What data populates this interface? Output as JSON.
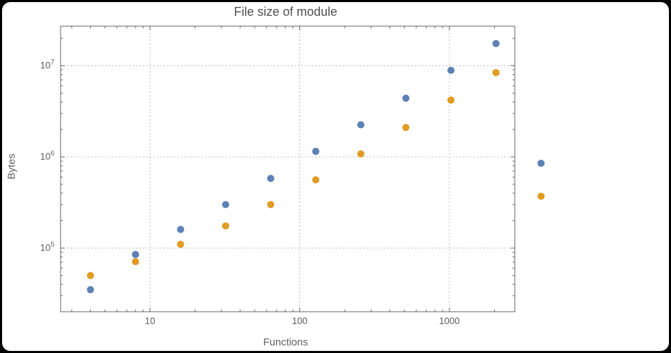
{
  "style": {
    "page_background": "#000000",
    "figure_background": "#ffffff",
    "title_color": "#4f4f4f",
    "label_color": "#5e5e5e",
    "tick_label_color": "#5f5a5a",
    "frame_color": "#626262",
    "grid_color": "#ababab"
  },
  "chart_data": {
    "type": "scatter",
    "title": "File size of module",
    "xlabel": "Functions",
    "ylabel": "Bytes",
    "x_scale": "log",
    "y_scale": "log",
    "grid": "dotted",
    "legend": "none",
    "x_range": [
      2.5,
      2700
    ],
    "y_range": [
      20000,
      27000000
    ],
    "x": [
      4,
      8,
      16,
      32,
      64,
      128,
      256,
      512,
      1024,
      2048,
      4096
    ],
    "series": [
      {
        "name": "blue",
        "color": "#5e81b5",
        "values": [
          35000,
          85000,
          160000,
          300000,
          580000,
          1150000,
          2250000,
          4400000,
          8900000,
          17500000,
          850000
        ]
      },
      {
        "name": "orange",
        "color": "#e09c24",
        "values": [
          50000,
          71000,
          110000,
          175000,
          300000,
          560000,
          1080000,
          2100000,
          4200000,
          8400000,
          370000
        ]
      }
    ],
    "x_ticks": [
      10,
      100,
      1000
    ],
    "x_tick_labels": [
      "10",
      "100",
      "1000"
    ],
    "y_ticks": [
      100000,
      1000000,
      10000000
    ],
    "y_tick_labels": [
      "10^5",
      "10^6",
      "10^7"
    ]
  }
}
